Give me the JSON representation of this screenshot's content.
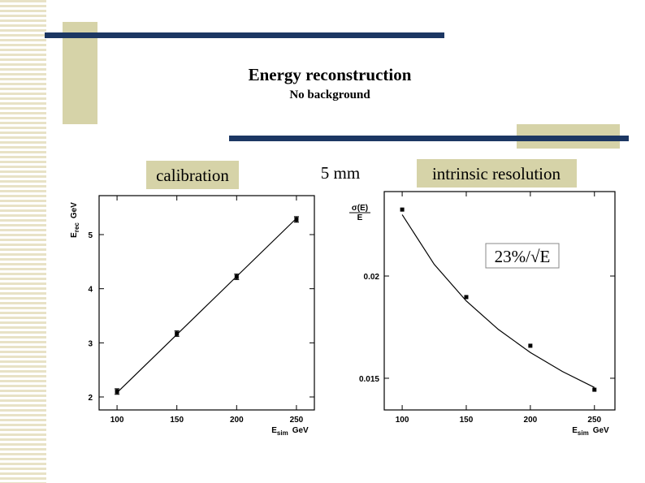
{
  "slide": {
    "title": "Energy reconstruction",
    "subtitle": "No background",
    "labels": [
      "calibration",
      "5 mm",
      "intrinsic resolution"
    ]
  },
  "chart_data": [
    {
      "type": "scatter",
      "x": [
        100,
        150,
        200,
        250
      ],
      "values": [
        2.1,
        3.17,
        4.22,
        5.28
      ],
      "errors": [
        0.05,
        0.05,
        0.05,
        0.05
      ],
      "color": "#000000",
      "fit": {
        "x": [
          100,
          250
        ],
        "values": [
          2.08,
          5.3
        ]
      },
      "xlim": [
        85,
        265
      ],
      "ylim": [
        1.76,
        5.72
      ],
      "xticks": [
        100,
        150,
        200,
        250
      ],
      "yticks": [
        2,
        3,
        4,
        5
      ],
      "x_label": {
        "main": "E",
        "sub": "sim",
        "unit": "GeV"
      },
      "y_label": {
        "main": "E",
        "sub": "rec",
        "unit": "GeV"
      }
    },
    {
      "type": "scatter",
      "x": [
        100,
        150,
        200,
        250
      ],
      "values": [
        0.02325,
        0.01897,
        0.01659,
        0.01444
      ],
      "color": "#000000",
      "fit": {
        "x": [
          100,
          125,
          150,
          175,
          200,
          225,
          250
        ],
        "values": [
          0.023,
          0.02057,
          0.01878,
          0.01739,
          0.01626,
          0.01533,
          0.01455
        ]
      },
      "fit_label": "23%/√E",
      "xlim": [
        86,
        266
      ],
      "ylim": [
        0.01345,
        0.02413
      ],
      "xticks": [
        100,
        150,
        200,
        250
      ],
      "yticks": [
        0.015,
        0.02
      ],
      "x_label": {
        "main": "E",
        "sub": "sim",
        "unit": "GeV"
      },
      "y_label": {
        "numerator": "σ(E)",
        "denominator": "E"
      }
    }
  ]
}
